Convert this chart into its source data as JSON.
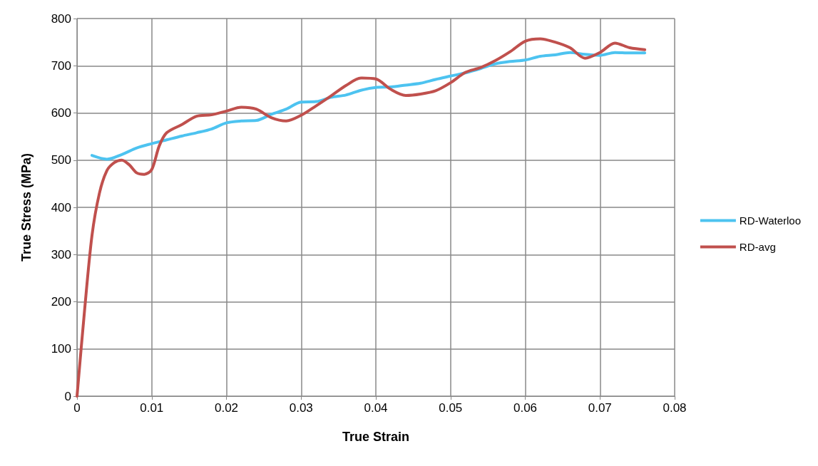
{
  "chart_data": {
    "type": "line",
    "xlabel": "True Strain",
    "ylabel": "True Stress (MPa)",
    "xlim": [
      0,
      0.08
    ],
    "xticks": [
      0,
      0.01,
      0.02,
      0.03,
      0.04,
      0.05,
      0.06,
      0.07,
      0.08
    ],
    "ylim": [
      0,
      800
    ],
    "yticks": [
      0,
      100,
      200,
      300,
      400,
      500,
      600,
      700,
      800
    ],
    "grid": true,
    "legend": "right",
    "marker": "none",
    "line_style": "solid",
    "series": [
      {
        "name": "RD-Waterloo",
        "color": "#4dc3f0",
        "x": [
          0.002,
          0.004,
          0.006,
          0.008,
          0.01,
          0.012,
          0.014,
          0.016,
          0.018,
          0.02,
          0.022,
          0.024,
          0.026,
          0.028,
          0.03,
          0.032,
          0.034,
          0.036,
          0.038,
          0.04,
          0.042,
          0.044,
          0.046,
          0.048,
          0.05,
          0.052,
          0.054,
          0.056,
          0.058,
          0.06,
          0.062,
          0.064,
          0.066,
          0.068,
          0.07,
          0.072,
          0.074,
          0.076
        ],
        "values": [
          510,
          502,
          512,
          526,
          535,
          543,
          551,
          558,
          566,
          579,
          583,
          584,
          597,
          608,
          623,
          624,
          633,
          638,
          648,
          654,
          655,
          659,
          663,
          671,
          678,
          685,
          694,
          704,
          709,
          712,
          720,
          723,
          728,
          724,
          722,
          728,
          727,
          727
        ]
      },
      {
        "name": "RD-avg",
        "color": "#c0504d",
        "x": [
          0,
          0.001,
          0.002,
          0.003,
          0.004,
          0.005,
          0.006,
          0.007,
          0.008,
          0.009,
          0.01,
          0.011,
          0.012,
          0.014,
          0.016,
          0.018,
          0.02,
          0.022,
          0.024,
          0.026,
          0.028,
          0.03,
          0.032,
          0.034,
          0.036,
          0.038,
          0.04,
          0.042,
          0.044,
          0.046,
          0.048,
          0.05,
          0.052,
          0.054,
          0.056,
          0.058,
          0.06,
          0.062,
          0.064,
          0.066,
          0.068,
          0.07,
          0.072,
          0.074,
          0.076
        ],
        "values": [
          0,
          180,
          340,
          430,
          478,
          495,
          500,
          490,
          473,
          470,
          480,
          530,
          558,
          575,
          593,
          596,
          604,
          612,
          608,
          590,
          583,
          595,
          615,
          636,
          658,
          674,
          672,
          650,
          637,
          640,
          647,
          664,
          686,
          696,
          711,
          730,
          752,
          757,
          750,
          738,
          716,
          728,
          748,
          738,
          734
        ]
      }
    ]
  }
}
